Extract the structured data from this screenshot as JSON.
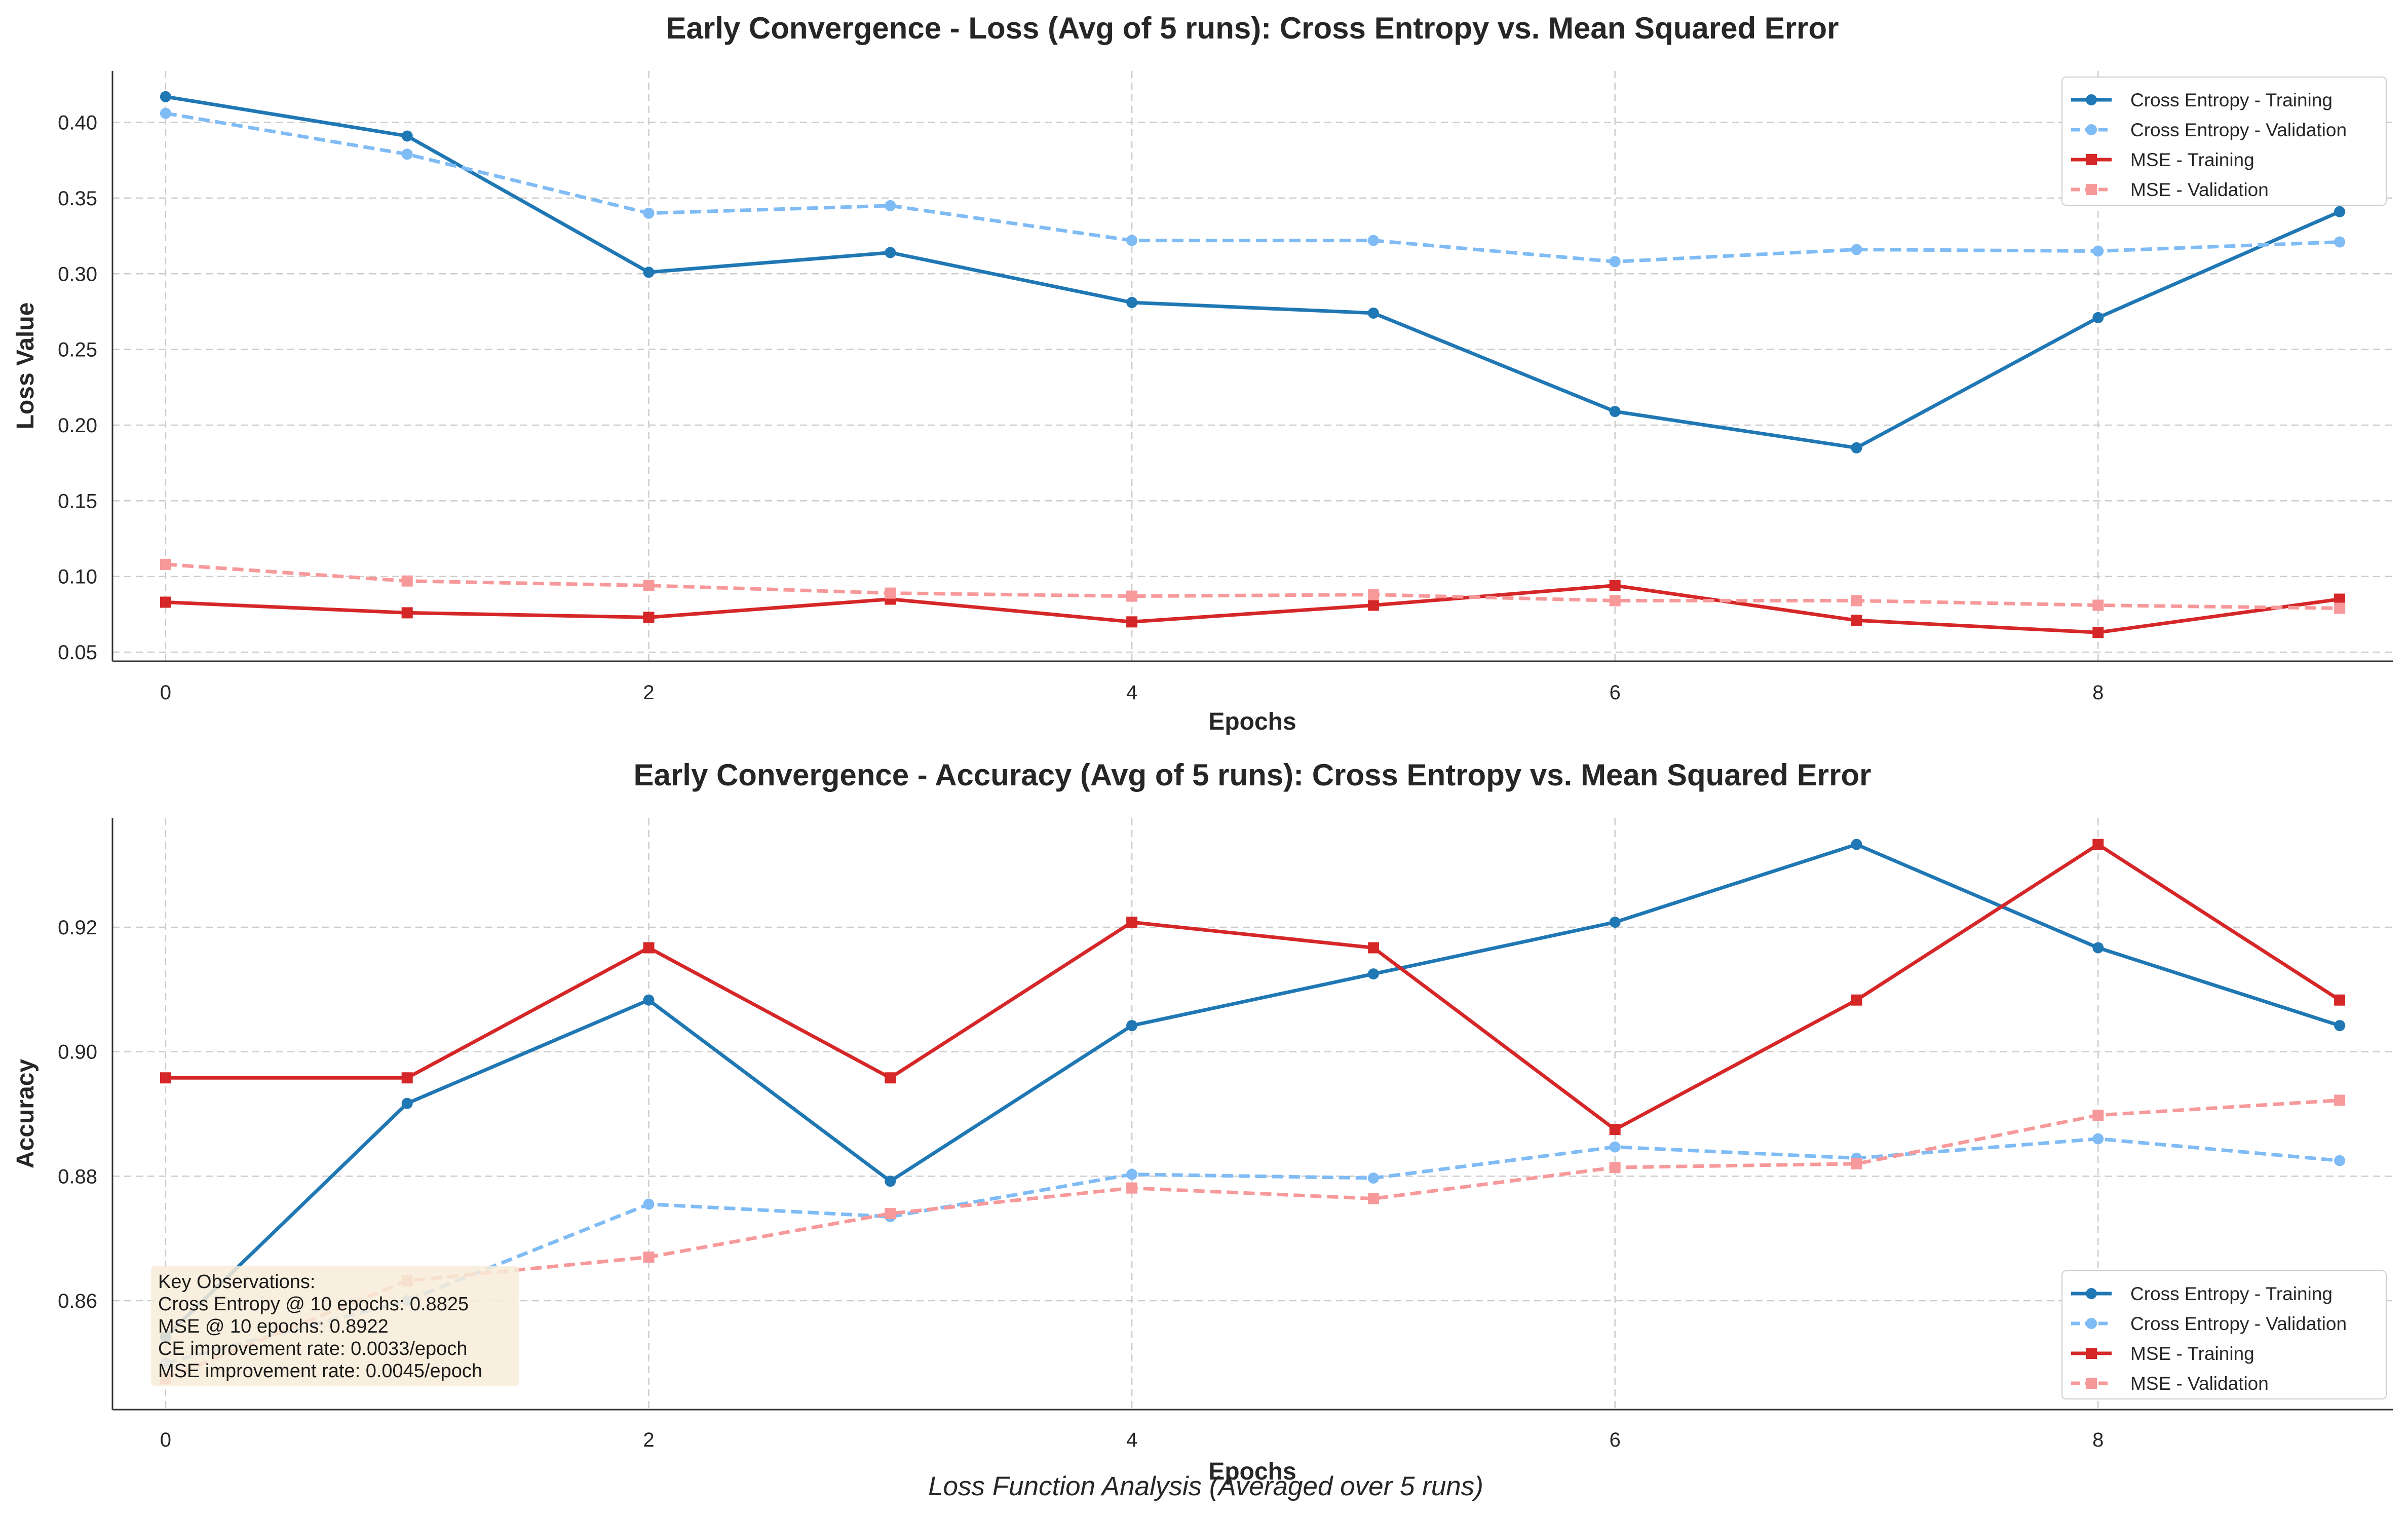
{
  "figure": {
    "suptitle": "Loss Function Analysis (Averaged over 5 runs)"
  },
  "colors": {
    "ce_train": "#1f77b4",
    "ce_val": "#7fbbf5",
    "mse_train": "#d62728",
    "mse_val": "#f7999a",
    "grid": "#cccccc",
    "annotation_bg": "#f8ecd8"
  },
  "chart_data": [
    {
      "type": "line",
      "title": "Early Convergence - Loss (Avg of 5 runs): Cross Entropy vs. Mean Squared Error",
      "xlabel": "Epochs",
      "ylabel": "Loss Value",
      "x": [
        0,
        1,
        2,
        3,
        4,
        5,
        6,
        7,
        8,
        9
      ],
      "xticks": [
        "0",
        "2",
        "4",
        "6",
        "8"
      ],
      "yticks": [
        "0.05",
        "0.10",
        "0.15",
        "0.20",
        "0.25",
        "0.30",
        "0.35",
        "0.40"
      ],
      "ylim": [
        0.044,
        0.434
      ],
      "grid": true,
      "legend_position": "top-right",
      "series": [
        {
          "name": "Cross Entropy - Training",
          "values": [
            0.417,
            0.391,
            0.301,
            0.314,
            0.281,
            0.274,
            0.209,
            0.185,
            0.271,
            0.341
          ],
          "color": "#1f77b4",
          "dashed": false,
          "marker": "circle"
        },
        {
          "name": "Cross Entropy - Validation",
          "values": [
            0.406,
            0.379,
            0.34,
            0.345,
            0.322,
            0.322,
            0.308,
            0.316,
            0.315,
            0.321
          ],
          "color": "#7fbbf5",
          "dashed": true,
          "marker": "circle"
        },
        {
          "name": "MSE - Training",
          "values": [
            0.083,
            0.076,
            0.073,
            0.085,
            0.07,
            0.081,
            0.094,
            0.071,
            0.063,
            0.085
          ],
          "color": "#d62728",
          "dashed": false,
          "marker": "square"
        },
        {
          "name": "MSE - Validation",
          "values": [
            0.108,
            0.097,
            0.094,
            0.089,
            0.087,
            0.088,
            0.084,
            0.084,
            0.081,
            0.079
          ],
          "color": "#f7999a",
          "dashed": true,
          "marker": "square"
        }
      ]
    },
    {
      "type": "line",
      "title": "Early Convergence - Accuracy (Avg of 5 runs): Cross Entropy vs. Mean Squared Error",
      "xlabel": "Epochs",
      "ylabel": "Accuracy",
      "x": [
        0,
        1,
        2,
        3,
        4,
        5,
        6,
        7,
        8,
        9
      ],
      "xticks": [
        "0",
        "2",
        "4",
        "6",
        "8"
      ],
      "yticks": [
        "0.86",
        "0.88",
        "0.90",
        "0.92"
      ],
      "ylim": [
        0.8425,
        0.9375
      ],
      "grid": true,
      "legend_position": "bottom-right",
      "series": [
        {
          "name": "Cross Entropy - Training",
          "values": [
            0.8542,
            0.8917,
            0.9083,
            0.8792,
            0.9042,
            0.9125,
            0.9208,
            0.9333,
            0.9167,
            0.9042
          ],
          "color": "#1f77b4",
          "dashed": false,
          "marker": "circle"
        },
        {
          "name": "Cross Entropy - Validation",
          "values": [
            0.85,
            0.86,
            0.8755,
            0.8735,
            0.8803,
            0.8797,
            0.8847,
            0.8829,
            0.886,
            0.8825
          ],
          "color": "#7fbbf5",
          "dashed": true,
          "marker": "circle"
        },
        {
          "name": "MSE - Training",
          "values": [
            0.8958,
            0.8958,
            0.9167,
            0.8958,
            0.9208,
            0.9167,
            0.8875,
            0.9083,
            0.9333,
            0.9083
          ],
          "color": "#d62728",
          "dashed": false,
          "marker": "square"
        },
        {
          "name": "MSE - Validation",
          "values": [
            0.8475,
            0.8632,
            0.867,
            0.874,
            0.8781,
            0.8764,
            0.8814,
            0.882,
            0.8898,
            0.8922
          ],
          "color": "#f7999a",
          "dashed": true,
          "marker": "square"
        }
      ],
      "annotation": {
        "lines": [
          "Key Observations:",
          "Cross Entropy @ 10 epochs: 0.8825",
          "MSE @ 10 epochs: 0.8922",
          "CE improvement rate: 0.0033/epoch",
          "MSE improvement rate: 0.0045/epoch"
        ]
      }
    }
  ]
}
